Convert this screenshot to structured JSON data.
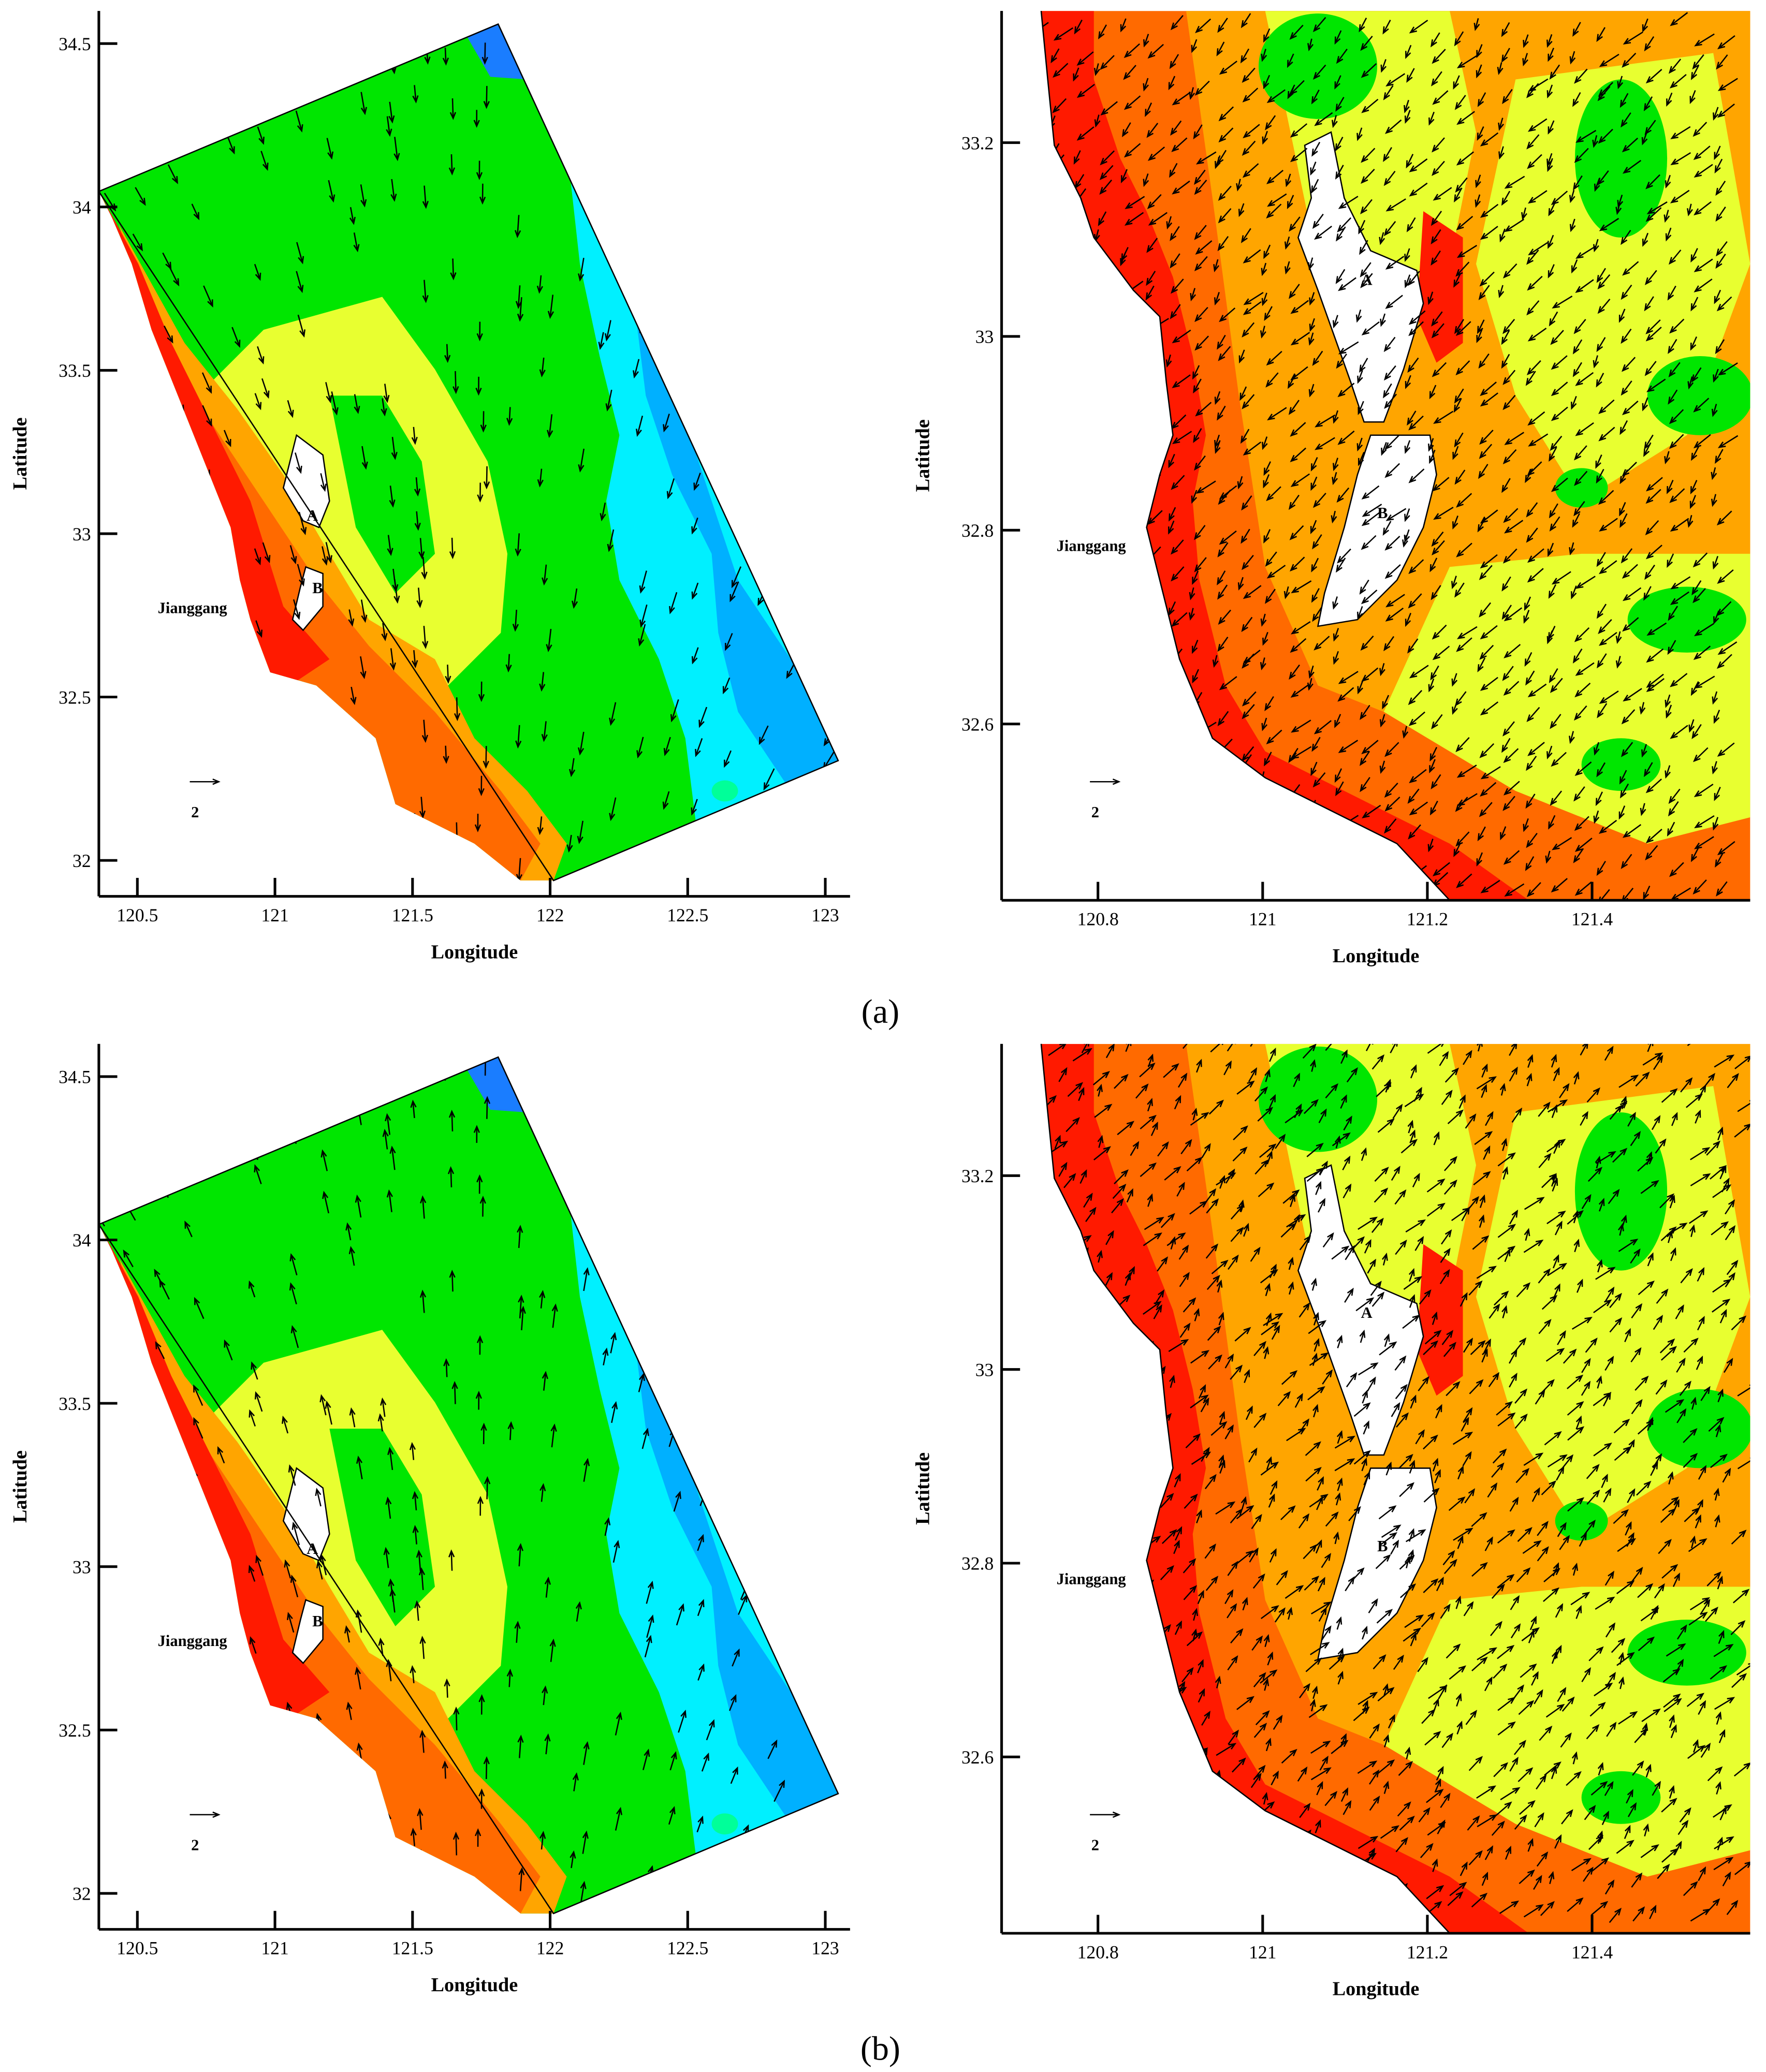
{
  "chart_data": [
    {
      "type": "vector-map",
      "xlabel": "Longitude",
      "ylabel": "Latitude",
      "xlim": [
        120.36,
        123.09
      ],
      "ylim": [
        31.89,
        34.6
      ],
      "xticks": [
        120.5,
        121,
        121.5,
        122,
        122.5,
        123
      ],
      "yticks": [
        32,
        32.5,
        33,
        33.5,
        34,
        34.5
      ],
      "labels": [
        "A",
        "B",
        "Jianggang",
        "2"
      ]
    },
    {
      "type": "vector-map",
      "xlabel": "Longitude",
      "ylabel": "Latitude",
      "xlim": [
        120.683,
        121.592
      ],
      "ylim": [
        32.418,
        33.336
      ],
      "xticks": [
        120.8,
        121,
        121.2,
        121.4
      ],
      "yticks": [
        32.6,
        32.8,
        33,
        33.2
      ],
      "labels": [
        "A",
        "B",
        "Jianggang",
        "2"
      ]
    },
    {
      "type": "vector-map",
      "xlabel": "Longitude",
      "ylabel": "Latitude",
      "xlim": [
        120.36,
        123.09
      ],
      "ylim": [
        31.89,
        34.6
      ],
      "xticks": [
        120.5,
        121,
        121.5,
        122,
        122.5,
        123
      ],
      "yticks": [
        32,
        32.5,
        33,
        33.5,
        34,
        34.5
      ],
      "labels": [
        "A",
        "B",
        "Jianggang",
        "2"
      ]
    },
    {
      "type": "vector-map",
      "xlabel": "Longitude",
      "ylabel": "Latitude",
      "xlim": [
        120.683,
        121.592
      ],
      "ylim": [
        32.418,
        33.336
      ],
      "xticks": [
        120.8,
        121,
        121.2,
        121.4
      ],
      "yticks": [
        32.6,
        32.8,
        33,
        33.2
      ],
      "labels": [
        "A",
        "B",
        "Jianggang",
        "2"
      ]
    }
  ],
  "panel_labels": [
    "(a)",
    "(b)"
  ]
}
